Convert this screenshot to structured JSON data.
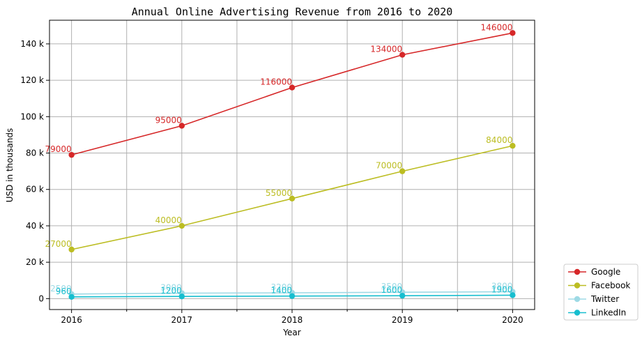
{
  "chart_data": {
    "type": "line",
    "title": "Annual Online Advertising Revenue from 2016 to 2020",
    "xlabel": "Year",
    "ylabel": "USD in thousands",
    "x": [
      "2016",
      "2017",
      "2018",
      "2019",
      "2020"
    ],
    "xlim": [
      2015.8,
      2020.2
    ],
    "ylim": [
      -6000,
      153000
    ],
    "yticks": [
      0,
      20000,
      40000,
      60000,
      80000,
      100000,
      120000,
      140000
    ],
    "ytick_labels": [
      "0",
      "20 k",
      "40 k",
      "60 k",
      "80 k",
      "100 k",
      "120 k",
      "140 k"
    ],
    "grid": true,
    "legend_position": "bottom-right outside",
    "series": [
      {
        "name": "Google",
        "color": "#d62728",
        "values": [
          79000,
          95000,
          116000,
          134000,
          146000
        ],
        "labels": [
          "79000",
          "95000",
          "116000",
          "134000",
          "146000"
        ]
      },
      {
        "name": "Facebook",
        "color": "#bcbd22",
        "values": [
          27000,
          40000,
          55000,
          70000,
          84000
        ],
        "labels": [
          "27000",
          "40000",
          "55000",
          "70000",
          "84000"
        ]
      },
      {
        "name": "Twitter",
        "color": "#9edae5",
        "values": [
          2500,
          3000,
          3200,
          3500,
          3800
        ],
        "labels": [
          "2500",
          "3000",
          "3200",
          "3500",
          "3800"
        ]
      },
      {
        "name": "LinkedIn",
        "color": "#17becf",
        "values": [
          960,
          1200,
          1400,
          1600,
          1900
        ],
        "labels": [
          "960",
          "1200",
          "1400",
          "1600",
          "1900"
        ]
      }
    ]
  }
}
